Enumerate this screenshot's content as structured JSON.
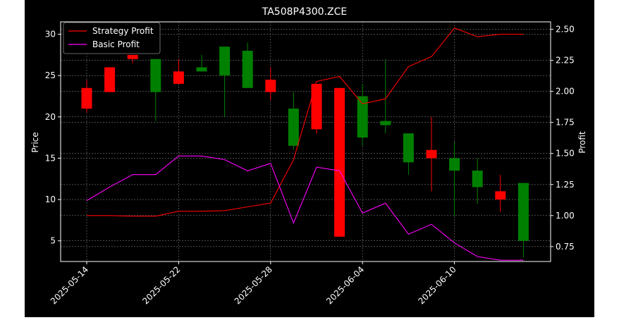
{
  "chart_data": {
    "type": "candlestick",
    "title": "TA508P4300.ZCE",
    "xlabel": "",
    "ylabel": "Price",
    "y2label": "Profit",
    "ylim": [
      2.5,
      31.5
    ],
    "y2lim": [
      0.63,
      2.56
    ],
    "yticks": [
      5,
      10,
      15,
      20,
      25,
      30
    ],
    "y2ticks": [
      0.75,
      1.0,
      1.25,
      1.5,
      1.75,
      2.0,
      2.25,
      2.5
    ],
    "y2tick_labels": [
      "0.75",
      "1.00",
      "1.25",
      "1.50",
      "1.75",
      "2.00",
      "2.25",
      "2.50"
    ],
    "xtick_labels": [
      "2025-05-14",
      "2025-05-22",
      "2025-05-28",
      "2025-06-04",
      "2025-06-10"
    ],
    "xtick_index": [
      0,
      4,
      8,
      12,
      16
    ],
    "grid": true,
    "legend_position": "top-left",
    "colors": {
      "up": "#008000",
      "down": "#ff0000",
      "strategy": "#ff0000",
      "basic": "#ff00ff",
      "background": "#000000",
      "text": "#ffffff"
    },
    "candles": [
      {
        "open": 23.5,
        "high": 24.5,
        "low": 20.5,
        "close": 21.0
      },
      {
        "open": 26.0,
        "high": 26.0,
        "low": 23.0,
        "close": 23.0
      },
      {
        "open": 27.5,
        "high": 27.5,
        "low": 26.5,
        "close": 27.0
      },
      {
        "open": 23.0,
        "high": 27.0,
        "low": 19.5,
        "close": 27.0
      },
      {
        "open": 25.5,
        "high": 27.0,
        "low": 24.0,
        "close": 24.0
      },
      {
        "open": 25.5,
        "high": 27.5,
        "low": 25.5,
        "close": 26.0
      },
      {
        "open": 25.0,
        "high": 28.5,
        "low": 20.0,
        "close": 28.5
      },
      {
        "open": 23.5,
        "high": 29.0,
        "low": 23.5,
        "close": 28.0
      },
      {
        "open": 24.5,
        "high": 26.0,
        "low": 22.0,
        "close": 23.0
      },
      {
        "open": 16.5,
        "high": 23.0,
        "low": 16.0,
        "close": 21.0
      },
      {
        "open": 24.0,
        "high": 24.0,
        "low": 18.0,
        "close": 18.5
      },
      {
        "open": 23.5,
        "high": 23.5,
        "low": 5.5,
        "close": 5.5
      },
      {
        "open": 17.5,
        "high": 24.0,
        "low": 16.5,
        "close": 22.5
      },
      {
        "open": 19.0,
        "high": 27.0,
        "low": 18.0,
        "close": 19.5
      },
      {
        "open": 14.5,
        "high": 18.0,
        "low": 13.0,
        "close": 18.0
      },
      {
        "open": 16.0,
        "high": 20.0,
        "low": 11.0,
        "close": 15.0
      },
      {
        "open": 13.5,
        "high": 17.0,
        "low": 8.0,
        "close": 15.0
      },
      {
        "open": 11.5,
        "high": 15.0,
        "low": 9.5,
        "close": 13.5
      },
      {
        "open": 11.0,
        "high": 13.0,
        "low": 8.5,
        "close": 10.0
      },
      {
        "open": 5.0,
        "high": 12.0,
        "low": 3.0,
        "close": 12.0
      }
    ],
    "series": [
      {
        "name": "Strategy Profit",
        "axis": "right",
        "values": [
          1.0,
          1.0,
          0.995,
          0.995,
          1.035,
          1.035,
          1.04,
          1.07,
          1.1,
          1.45,
          2.08,
          2.12,
          1.9,
          1.94,
          2.2,
          2.28,
          2.51,
          2.44,
          2.46,
          2.46
        ]
      },
      {
        "name": "Basic Profit",
        "axis": "right",
        "values": [
          1.12,
          1.23,
          1.33,
          1.33,
          1.48,
          1.48,
          1.45,
          1.36,
          1.42,
          0.94,
          1.39,
          1.36,
          1.02,
          1.1,
          0.85,
          0.93,
          0.78,
          0.67,
          0.64,
          0.64
        ]
      }
    ]
  }
}
